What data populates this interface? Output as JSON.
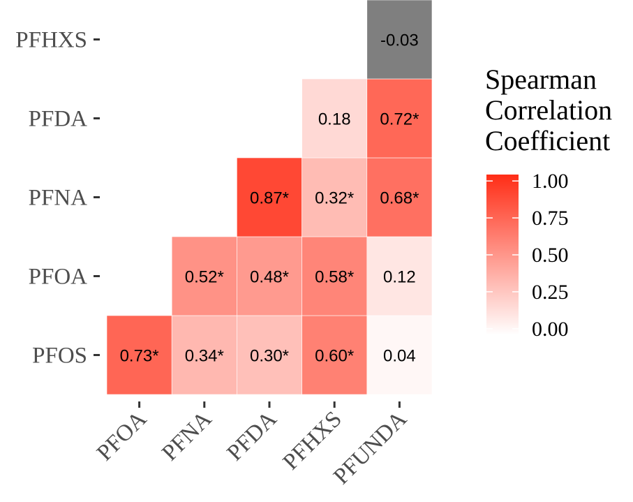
{
  "chart_data": {
    "type": "heatmap",
    "x_categories": [
      "PFOA",
      "PFNA",
      "PFDA",
      "PFHXS",
      "PFUNDA"
    ],
    "y_categories": [
      "PFOS",
      "PFOA",
      "PFNA",
      "PFDA",
      "PFHXS"
    ],
    "cells": [
      {
        "x": "PFOA",
        "y": "PFOS",
        "value": 0.73,
        "label": "0.73*"
      },
      {
        "x": "PFNA",
        "y": "PFOS",
        "value": 0.34,
        "label": "0.34*"
      },
      {
        "x": "PFDA",
        "y": "PFOS",
        "value": 0.3,
        "label": "0.30*"
      },
      {
        "x": "PFHXS",
        "y": "PFOS",
        "value": 0.6,
        "label": "0.60*"
      },
      {
        "x": "PFUNDA",
        "y": "PFOS",
        "value": 0.04,
        "label": "0.04"
      },
      {
        "x": "PFNA",
        "y": "PFOA",
        "value": 0.52,
        "label": "0.52*"
      },
      {
        "x": "PFDA",
        "y": "PFOA",
        "value": 0.48,
        "label": "0.48*"
      },
      {
        "x": "PFHXS",
        "y": "PFOA",
        "value": 0.58,
        "label": "0.58*"
      },
      {
        "x": "PFUNDA",
        "y": "PFOA",
        "value": 0.12,
        "label": "0.12"
      },
      {
        "x": "PFDA",
        "y": "PFNA",
        "value": 0.87,
        "label": "0.87*"
      },
      {
        "x": "PFHXS",
        "y": "PFNA",
        "value": 0.32,
        "label": "0.32*"
      },
      {
        "x": "PFUNDA",
        "y": "PFNA",
        "value": 0.68,
        "label": "0.68*"
      },
      {
        "x": "PFHXS",
        "y": "PFDA",
        "value": 0.18,
        "label": "0.18"
      },
      {
        "x": "PFUNDA",
        "y": "PFDA",
        "value": 0.72,
        "label": "0.72*"
      },
      {
        "x": "PFUNDA",
        "y": "PFHXS",
        "value": -0.03,
        "label": "-0.03"
      }
    ],
    "legend": {
      "title_lines": [
        "Spearman",
        "Correlation",
        "Coefficient"
      ],
      "range": [
        0,
        1
      ],
      "ticks": [
        "1.00",
        "0.75",
        "0.50",
        "0.25",
        "0.00"
      ],
      "placement": "right"
    },
    "colors": {
      "low": "#ffffff",
      "high": "#ff2d16",
      "na": "#7f7f7f"
    },
    "grid": false
  }
}
